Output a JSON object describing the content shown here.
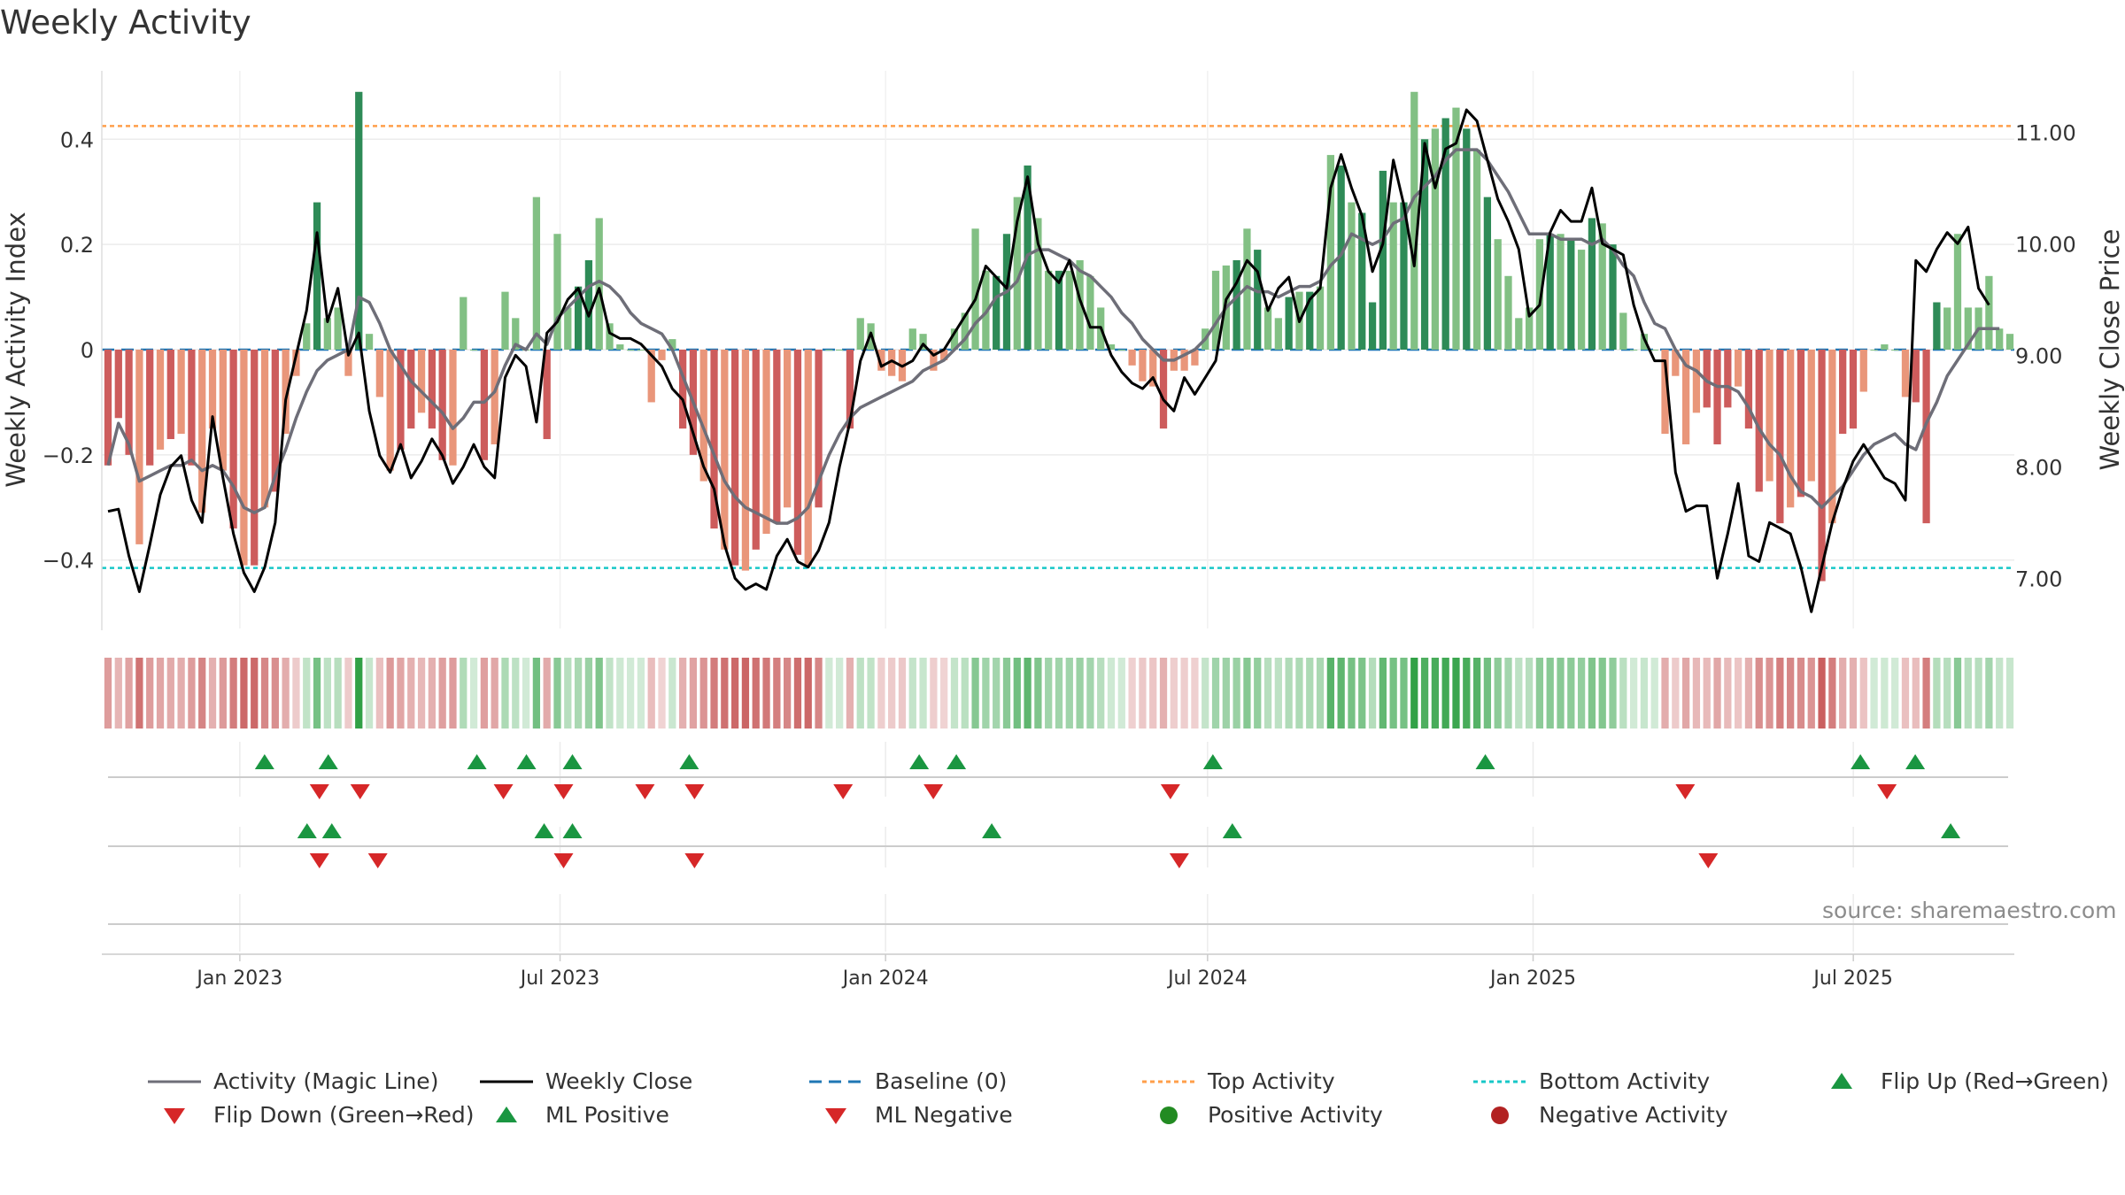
{
  "title": "Weekly Activity",
  "source": "source: sharemaestro.com",
  "colors": {
    "pos_dark": "#2e8b57",
    "pos_light": "#82c084",
    "neg_dark": "#cd5c5c",
    "neg_light": "#e9967a",
    "magic": "#6e6e78",
    "close": "#000000",
    "baseline": "#1f77b4",
    "top": "#ff9f4a",
    "bottom": "#17c7c7",
    "flip_up": "#1a9641",
    "flip_down": "#d62728",
    "pos_dot": "#228b22",
    "neg_dot": "#b22222"
  },
  "chart_data": {
    "type": "bar+line",
    "x_axis": {
      "start": "2022-10-15",
      "end": "2025-09-30",
      "ticks": [
        {
          "date": "2023-01-01",
          "label": "Jan 2023"
        },
        {
          "date": "2023-07-01",
          "label": "Jul 2023"
        },
        {
          "date": "2024-01-01",
          "label": "Jan 2024"
        },
        {
          "date": "2024-07-01",
          "label": "Jul 2024"
        },
        {
          "date": "2025-01-01",
          "label": "Jan 2025"
        },
        {
          "date": "2025-07-01",
          "label": "Jul 2025"
        }
      ]
    },
    "left_axis": {
      "label": "Weekly Activity Index",
      "ylim": [
        -0.53,
        0.53
      ],
      "ticks": [
        {
          "v": 0.4,
          "label": "0.4"
        },
        {
          "v": 0.2,
          "label": "0.2"
        },
        {
          "v": 0,
          "label": "0"
        },
        {
          "v": -0.2,
          "label": "−0.2"
        },
        {
          "v": -0.4,
          "label": "−0.4"
        }
      ]
    },
    "right_axis": {
      "label": "Weekly Close Price",
      "ylim": [
        6.55,
        11.55
      ],
      "ticks": [
        {
          "v": 11,
          "label": "11.00"
        },
        {
          "v": 10,
          "label": "10.00"
        },
        {
          "v": 9,
          "label": "9.00"
        },
        {
          "v": 8,
          "label": "8.00"
        },
        {
          "v": 7,
          "label": "7.00"
        }
      ]
    },
    "top_activity": 0.425,
    "bottom_activity": -0.415,
    "weekly_activity": [
      -0.22,
      -0.13,
      -0.2,
      -0.37,
      -0.22,
      -0.19,
      -0.17,
      -0.16,
      -0.22,
      -0.31,
      -0.15,
      -0.23,
      -0.34,
      -0.41,
      -0.41,
      -0.3,
      -0.27,
      -0.16,
      -0.05,
      0.05,
      0.28,
      0.06,
      0.08,
      -0.05,
      0.49,
      0.03,
      -0.09,
      -0.23,
      -0.19,
      -0.15,
      -0.12,
      -0.15,
      -0.21,
      -0.22,
      0.1,
      0.0,
      -0.21,
      -0.18,
      0.11,
      0.06,
      0.0,
      0.29,
      -0.17,
      0.22,
      0.08,
      0.12,
      0.17,
      0.25,
      0.05,
      0.01,
      0.0,
      0.0,
      -0.1,
      -0.02,
      0.02,
      -0.15,
      -0.2,
      -0.25,
      -0.34,
      -0.38,
      -0.41,
      -0.42,
      -0.38,
      -0.35,
      -0.33,
      -0.3,
      -0.39,
      -0.41,
      -0.3,
      0.0,
      0.0,
      -0.15,
      0.06,
      0.05,
      -0.04,
      -0.05,
      -0.06,
      0.04,
      0.03,
      -0.04,
      -0.02,
      0.04,
      0.07,
      0.23,
      0.15,
      0.14,
      0.22,
      0.29,
      0.35,
      0.25,
      0.15,
      0.15,
      0.15,
      0.17,
      0.14,
      0.08,
      0.01,
      0.0,
      -0.03,
      -0.06,
      -0.07,
      -0.15,
      -0.04,
      -0.04,
      -0.03,
      0.04,
      0.15,
      0.16,
      0.17,
      0.23,
      0.19,
      0.08,
      0.06,
      0.1,
      0.11,
      0.11,
      0.12,
      0.37,
      0.35,
      0.28,
      0.26,
      0.09,
      0.34,
      0.28,
      0.28,
      0.49,
      0.4,
      0.42,
      0.44,
      0.46,
      0.42,
      0.38,
      0.29,
      0.21,
      0.14,
      0.06,
      0.08,
      0.21,
      0.22,
      0.22,
      0.21,
      0.19,
      0.25,
      0.24,
      0.2,
      0.07,
      0.0,
      0.03,
      0.0,
      -0.16,
      -0.05,
      -0.18,
      -0.12,
      -0.11,
      -0.18,
      -0.11,
      -0.07,
      -0.15,
      -0.27,
      -0.25,
      -0.33,
      -0.3,
      -0.28,
      -0.25,
      -0.44,
      -0.33,
      -0.16,
      -0.15,
      -0.08,
      0.0,
      0.01,
      0.0,
      -0.09,
      -0.1,
      -0.33,
      0.09,
      0.08,
      0.22,
      0.08,
      0.08,
      0.14,
      0.04,
      0.03
    ],
    "weekly_close": [
      7.6,
      7.62,
      7.2,
      6.88,
      7.3,
      7.75,
      8.0,
      8.1,
      7.7,
      7.5,
      8.45,
      7.9,
      7.4,
      7.05,
      6.88,
      7.1,
      7.5,
      8.6,
      9.0,
      9.4,
      10.1,
      9.3,
      9.6,
      9.0,
      9.2,
      8.5,
      8.1,
      7.95,
      8.2,
      7.9,
      8.05,
      8.25,
      8.1,
      7.85,
      8.0,
      8.2,
      8.0,
      7.9,
      8.8,
      9.0,
      8.9,
      8.4,
      9.2,
      9.3,
      9.5,
      9.6,
      9.35,
      9.6,
      9.2,
      9.15,
      9.15,
      9.1,
      9.0,
      8.9,
      8.7,
      8.6,
      8.3,
      8.0,
      7.8,
      7.3,
      7.0,
      6.9,
      6.95,
      6.9,
      7.2,
      7.35,
      7.15,
      7.1,
      7.25,
      7.5,
      8.0,
      8.4,
      8.95,
      9.2,
      8.9,
      8.95,
      8.9,
      8.95,
      9.1,
      9.0,
      9.05,
      9.2,
      9.35,
      9.5,
      9.8,
      9.7,
      9.6,
      10.2,
      10.6,
      10.0,
      9.75,
      9.65,
      9.85,
      9.5,
      9.25,
      9.25,
      9.0,
      8.85,
      8.75,
      8.7,
      8.8,
      8.6,
      8.5,
      8.8,
      8.65,
      8.8,
      8.95,
      9.5,
      9.65,
      9.85,
      9.75,
      9.4,
      9.6,
      9.7,
      9.3,
      9.5,
      9.6,
      10.5,
      10.8,
      10.5,
      10.25,
      9.75,
      10.0,
      10.75,
      10.35,
      9.8,
      10.9,
      10.5,
      10.85,
      10.9,
      11.2,
      11.1,
      10.75,
      10.4,
      10.2,
      9.95,
      9.35,
      9.45,
      10.1,
      10.3,
      10.2,
      10.2,
      10.5,
      10.0,
      9.95,
      9.9,
      9.45,
      9.15,
      8.95,
      8.95,
      7.95,
      7.6,
      7.65,
      7.65,
      7.0,
      7.4,
      7.85,
      7.2,
      7.15,
      7.5,
      7.45,
      7.4,
      7.1,
      6.7,
      7.1,
      7.5,
      7.8,
      8.05,
      8.2,
      8.05,
      7.9,
      7.85,
      7.7,
      9.85,
      9.75,
      9.95,
      10.1,
      10.0,
      10.15,
      9.6,
      9.45
    ],
    "magic_line": [
      -0.22,
      -0.14,
      -0.18,
      -0.25,
      -0.24,
      -0.23,
      -0.22,
      -0.22,
      -0.21,
      -0.23,
      -0.22,
      -0.23,
      -0.26,
      -0.3,
      -0.31,
      -0.3,
      -0.24,
      -0.19,
      -0.13,
      -0.08,
      -0.04,
      -0.02,
      -0.01,
      0.0,
      0.1,
      0.09,
      0.05,
      0.0,
      -0.03,
      -0.06,
      -0.08,
      -0.1,
      -0.12,
      -0.15,
      -0.13,
      -0.1,
      -0.1,
      -0.08,
      -0.03,
      0.01,
      0.0,
      0.03,
      0.01,
      0.06,
      0.08,
      0.1,
      0.12,
      0.13,
      0.12,
      0.1,
      0.07,
      0.05,
      0.04,
      0.03,
      0.0,
      -0.05,
      -0.1,
      -0.15,
      -0.2,
      -0.25,
      -0.28,
      -0.3,
      -0.31,
      -0.32,
      -0.33,
      -0.33,
      -0.32,
      -0.3,
      -0.25,
      -0.2,
      -0.16,
      -0.13,
      -0.11,
      -0.1,
      -0.09,
      -0.08,
      -0.07,
      -0.06,
      -0.04,
      -0.03,
      -0.02,
      0.0,
      0.02,
      0.05,
      0.07,
      0.1,
      0.11,
      0.13,
      0.18,
      0.19,
      0.19,
      0.18,
      0.17,
      0.15,
      0.14,
      0.12,
      0.1,
      0.07,
      0.05,
      0.02,
      0.0,
      -0.02,
      -0.02,
      -0.01,
      0.0,
      0.02,
      0.05,
      0.08,
      0.1,
      0.12,
      0.11,
      0.11,
      0.1,
      0.11,
      0.12,
      0.12,
      0.13,
      0.16,
      0.18,
      0.22,
      0.21,
      0.2,
      0.21,
      0.24,
      0.25,
      0.29,
      0.31,
      0.33,
      0.36,
      0.38,
      0.38,
      0.38,
      0.36,
      0.33,
      0.3,
      0.26,
      0.22,
      0.22,
      0.22,
      0.21,
      0.21,
      0.21,
      0.2,
      0.21,
      0.19,
      0.16,
      0.14,
      0.09,
      0.05,
      0.04,
      0.0,
      -0.03,
      -0.04,
      -0.06,
      -0.07,
      -0.07,
      -0.08,
      -0.11,
      -0.15,
      -0.18,
      -0.2,
      -0.24,
      -0.27,
      -0.28,
      -0.3,
      -0.28,
      -0.26,
      -0.23,
      -0.2,
      -0.18,
      -0.17,
      -0.16,
      -0.18,
      -0.19,
      -0.14,
      -0.1,
      -0.05,
      -0.02,
      0.01,
      0.04,
      0.04,
      0.04
    ],
    "marker_rows": {
      "row1_flip_up": [
        "2023-01-15",
        "2023-02-20",
        "2023-05-15",
        "2023-06-12",
        "2023-07-08",
        "2023-09-12",
        "2024-12-05",
        "2024-01-20",
        "2024-02-10",
        "2024-07-04",
        "2025-07-05",
        "2025-08-05"
      ],
      "row1_flip_down": [
        "2023-02-15",
        "2023-03-10",
        "2023-05-30",
        "2023-07-03",
        "2023-08-18",
        "2023-09-15",
        "2023-12-08",
        "2024-01-28",
        "2024-06-10",
        "2025-03-28",
        "2025-07-20"
      ],
      "row2_ml_positive": [
        "2023-02-08",
        "2023-02-22",
        "2023-06-22",
        "2023-07-08",
        "2024-03-01",
        "2024-07-15",
        "2025-08-25"
      ],
      "row2_ml_negative": [
        "2023-02-15",
        "2023-03-20",
        "2023-07-03",
        "2023-09-15",
        "2024-06-15",
        "2025-04-10"
      ]
    }
  },
  "legend": [
    {
      "label": "Activity (Magic Line)",
      "icon": "line-solid-gray"
    },
    {
      "label": "Weekly Close",
      "icon": "line-solid-black"
    },
    {
      "label": "Baseline (0)",
      "icon": "line-dashed-blue"
    },
    {
      "label": "Top Activity",
      "icon": "line-dotted-orange"
    },
    {
      "label": "Bottom Activity",
      "icon": "line-dotted-teal"
    },
    {
      "label": "Flip Up (Red→Green)",
      "icon": "triangle-up-green"
    },
    {
      "label": "Flip Down (Green→Red)",
      "icon": "triangle-down-red"
    },
    {
      "label": "ML Positive",
      "icon": "triangle-up-green"
    },
    {
      "label": "ML Negative",
      "icon": "triangle-down-red"
    },
    {
      "label": "Positive Activity",
      "icon": "circle-green"
    },
    {
      "label": "Negative Activity",
      "icon": "circle-red"
    }
  ]
}
